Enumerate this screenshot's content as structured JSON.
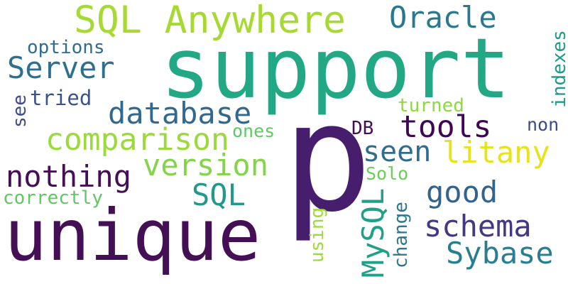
{
  "words": [
    {
      "key": "support",
      "text": "support",
      "color": "#22a884"
    },
    {
      "key": "p",
      "text": "p",
      "color": "#471d6e"
    },
    {
      "key": "unique",
      "text": "unique",
      "color": "#440f54"
    },
    {
      "key": "sql_anywhere",
      "text": "SQL Anywhere",
      "color": "#a6d932"
    },
    {
      "key": "oracle",
      "text": "Oracle",
      "color": "#2a788e"
    },
    {
      "key": "server",
      "text": "Server",
      "color": "#2d6f8e"
    },
    {
      "key": "options",
      "text": "options",
      "color": "#2f6c8e"
    },
    {
      "key": "tried",
      "text": "tried",
      "color": "#3b528b"
    },
    {
      "key": "see",
      "text": "see",
      "color": "#3d4d8a"
    },
    {
      "key": "database",
      "text": "database",
      "color": "#31688e"
    },
    {
      "key": "comparison",
      "text": "comparison",
      "color": "#9bd93c"
    },
    {
      "key": "ones",
      "text": "ones",
      "color": "#5ec962"
    },
    {
      "key": "turned",
      "text": "turned",
      "color": "#8fd744"
    },
    {
      "key": "tools",
      "text": "tools",
      "color": "#3e0751"
    },
    {
      "key": "db",
      "text": "DB",
      "color": "#440f54"
    },
    {
      "key": "non",
      "text": "non",
      "color": "#3e4a89"
    },
    {
      "key": "indexes",
      "text": "indexes",
      "color": "#1f9a8a"
    },
    {
      "key": "seen",
      "text": "seen",
      "color": "#2f6c8e"
    },
    {
      "key": "litany",
      "text": "litany",
      "color": "#e5e419"
    },
    {
      "key": "nothing",
      "text": "nothing",
      "color": "#440f54"
    },
    {
      "key": "version",
      "text": "version",
      "color": "#84d44b"
    },
    {
      "key": "sql",
      "text": "SQL",
      "color": "#22988a"
    },
    {
      "key": "correctly",
      "text": "correctly",
      "color": "#5ec962"
    },
    {
      "key": "solo",
      "text": "Solo",
      "color": "#6ccd5a"
    },
    {
      "key": "good",
      "text": "good",
      "color": "#33628d"
    },
    {
      "key": "schema",
      "text": "schema",
      "color": "#453781"
    },
    {
      "key": "sybase",
      "text": "Sybase",
      "color": "#287d8e"
    },
    {
      "key": "mysql",
      "text": "MySQL",
      "color": "#1fa187"
    },
    {
      "key": "change",
      "text": "change",
      "color": "#2a788e"
    },
    {
      "key": "using",
      "text": "using",
      "color": "#a0da39"
    }
  ]
}
